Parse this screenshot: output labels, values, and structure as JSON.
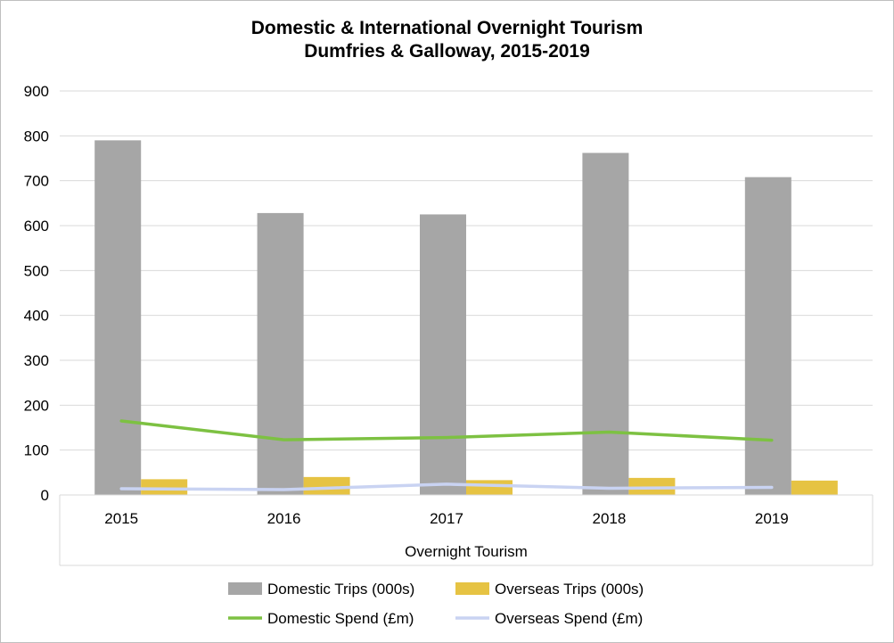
{
  "chart_data": {
    "type": "bar",
    "title_lines": [
      "Domestic & International Overnight Tourism",
      "Dumfries & Galloway, 2015-2019"
    ],
    "categories": [
      "2015",
      "2016",
      "2017",
      "2018",
      "2019"
    ],
    "xlabel": "Overnight Tourism",
    "ylabel": "",
    "ylim": [
      0,
      900
    ],
    "yticks": [
      0,
      100,
      200,
      300,
      400,
      500,
      600,
      700,
      800,
      900
    ],
    "grid": true,
    "legend_position": "bottom",
    "series": [
      {
        "name": "Domestic Trips (000s)",
        "kind": "bar",
        "color": "#a6a6a6",
        "values": [
          790,
          628,
          625,
          762,
          708
        ]
      },
      {
        "name": "Overseas Trips (000s)",
        "kind": "bar",
        "color": "#e6c343",
        "values": [
          35,
          40,
          33,
          38,
          32
        ]
      },
      {
        "name": "Domestic Spend (£m)",
        "kind": "line",
        "color": "#7dc142",
        "values": [
          165,
          123,
          128,
          140,
          122
        ]
      },
      {
        "name": "Overseas Spend (£m)",
        "kind": "line",
        "color": "#c9d3f2",
        "values": [
          14,
          12,
          24,
          15,
          17
        ]
      }
    ]
  }
}
